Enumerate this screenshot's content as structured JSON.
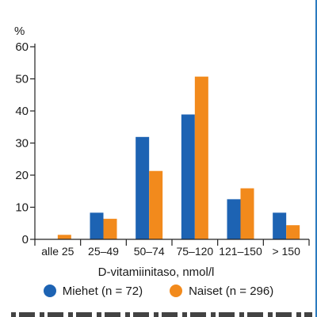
{
  "chart_data": {
    "type": "bar",
    "ylabel": "%",
    "xlabel": "D-vitamiinitaso, nmol/l",
    "ylim": [
      0,
      60
    ],
    "yticks": [
      0,
      10,
      20,
      30,
      40,
      50,
      60
    ],
    "categories": [
      "alle 25",
      "25–49",
      "50–74",
      "75–120",
      "121–150",
      "> 150"
    ],
    "series": [
      {
        "name": "Miehet (n = 72)",
        "color": "#1d63b3",
        "values": [
          0,
          8.3,
          31.9,
          38.9,
          12.5,
          8.3
        ]
      },
      {
        "name": "Naiset (n = 296)",
        "color": "#f28a1c",
        "values": [
          1.4,
          6.4,
          21.3,
          50.7,
          15.9,
          4.4
        ]
      }
    ],
    "grid": false,
    "legend": "bottom"
  }
}
